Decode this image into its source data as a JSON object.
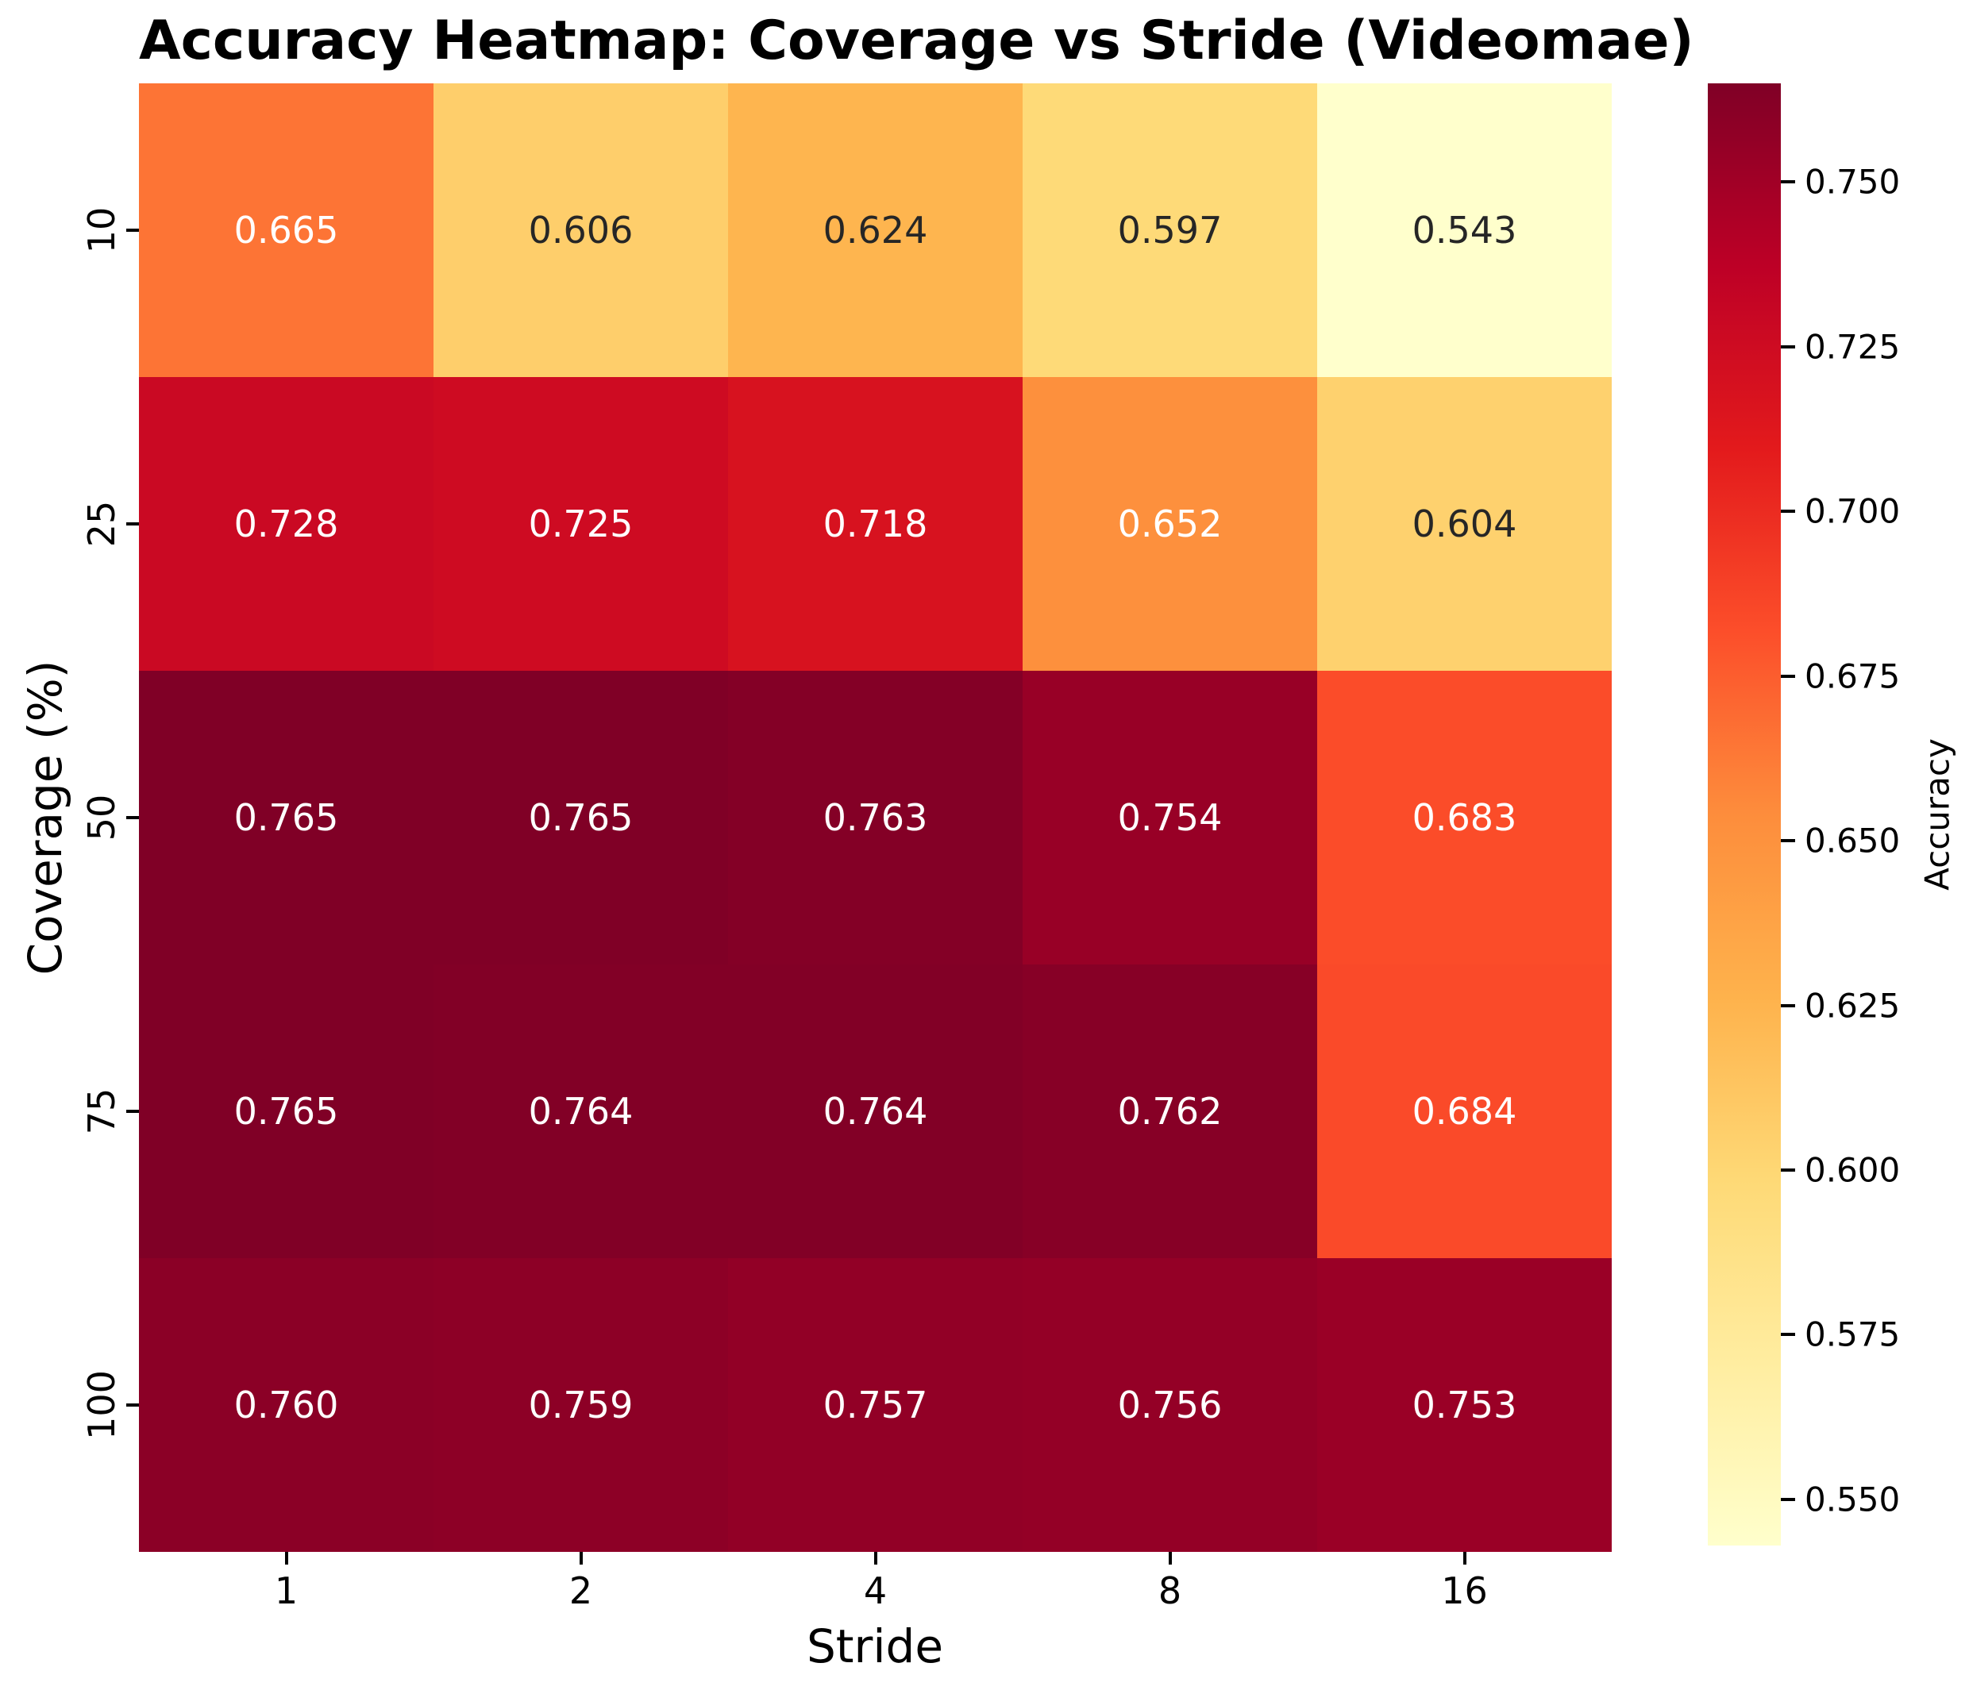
{
  "chart_data": {
    "type": "heatmap",
    "title": "Accuracy Heatmap: Coverage vs Stride (Videomae)",
    "xlabel": "Stride",
    "ylabel": "Coverage (%)",
    "x_tick_labels": [
      "1",
      "2",
      "4",
      "8",
      "16"
    ],
    "y_tick_labels": [
      "10",
      "25",
      "50",
      "75",
      "100"
    ],
    "values": [
      [
        0.665,
        0.606,
        0.624,
        0.597,
        0.543
      ],
      [
        0.728,
        0.725,
        0.718,
        0.652,
        0.604
      ],
      [
        0.765,
        0.765,
        0.763,
        0.754,
        0.683
      ],
      [
        0.765,
        0.764,
        0.764,
        0.762,
        0.684
      ],
      [
        0.76,
        0.759,
        0.757,
        0.756,
        0.753
      ]
    ],
    "annotation_decimals": 3,
    "colorbar_label": "Accuracy",
    "colorbar_tick_values": [
      0.75,
      0.725,
      0.7,
      0.675,
      0.65,
      0.625,
      0.6,
      0.575,
      0.55
    ],
    "colormap": "YlOrRd",
    "colors": {
      "colormap_stops": [
        "#ffffcc",
        "#ffeda0",
        "#fed976",
        "#feb24c",
        "#fd8d3c",
        "#fc4e2a",
        "#e31a1c",
        "#bd0026",
        "#800026"
      ],
      "annotation_light": "#ffffff",
      "annotation_dark": "#262626",
      "axis_text": "#000000",
      "background": "#ffffff"
    },
    "legend_position": "right-colorbar",
    "grid": false
  }
}
